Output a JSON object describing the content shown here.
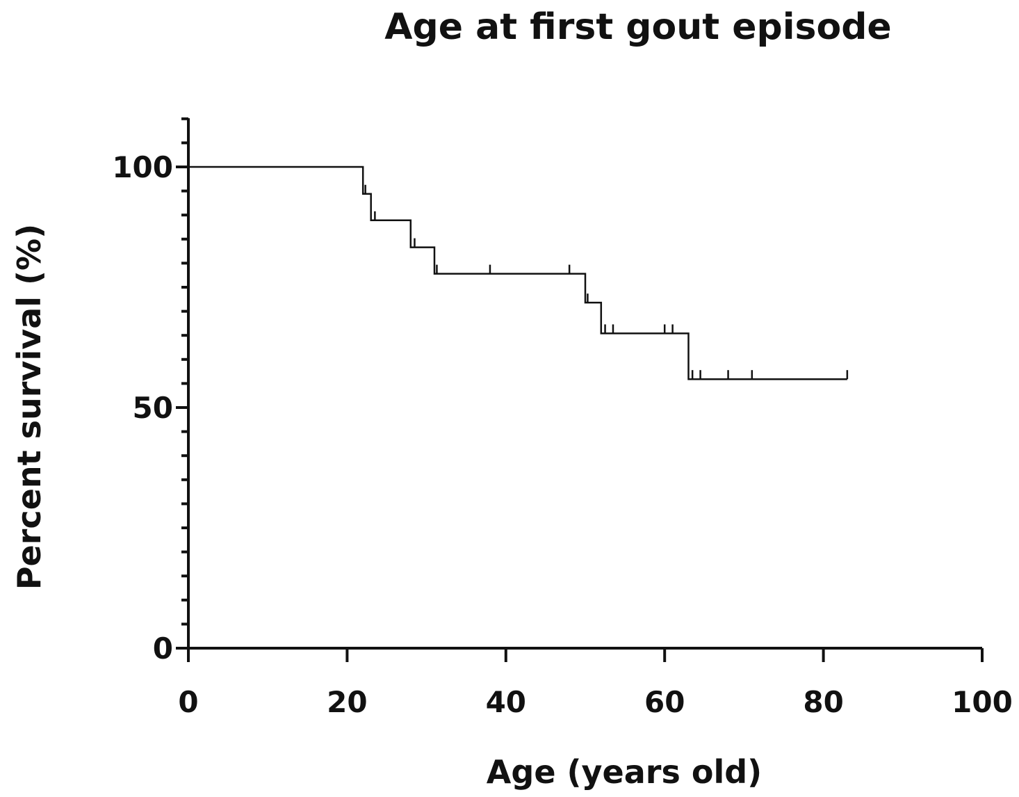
{
  "chart_data": {
    "type": "line",
    "subtype": "kaplan-meier-step",
    "title": "Age at first gout episode",
    "xlabel": "Age (years old)",
    "ylabel": "Percent survival (%)",
    "xlim": [
      0,
      100
    ],
    "ylim": [
      0,
      110
    ],
    "x_ticks": [
      0,
      20,
      40,
      60,
      80,
      100
    ],
    "x_tick_labels": [
      "0",
      "20",
      "40",
      "60",
      "80",
      "100"
    ],
    "y_ticks": [
      0,
      50,
      100
    ],
    "y_tick_labels": [
      "0",
      "50",
      "100"
    ],
    "y_minor_step": 5,
    "grid": false,
    "legend": "none",
    "series": [
      {
        "steps": [
          {
            "x": 0,
            "y": 100
          },
          {
            "x": 22,
            "y": 100
          },
          {
            "x": 22,
            "y": 94.4
          },
          {
            "x": 23,
            "y": 94.4
          },
          {
            "x": 23,
            "y": 88.9
          },
          {
            "x": 28,
            "y": 88.9
          },
          {
            "x": 28,
            "y": 83.3
          },
          {
            "x": 31,
            "y": 83.3
          },
          {
            "x": 31,
            "y": 77.8
          },
          {
            "x": 50,
            "y": 77.8
          },
          {
            "x": 50,
            "y": 71.8
          },
          {
            "x": 52,
            "y": 71.8
          },
          {
            "x": 52,
            "y": 65.4
          },
          {
            "x": 63,
            "y": 65.4
          },
          {
            "x": 63,
            "y": 55.9
          },
          {
            "x": 83,
            "y": 55.9
          }
        ],
        "censored": [
          {
            "x": 22.3,
            "y": 94.4
          },
          {
            "x": 23.5,
            "y": 88.9
          },
          {
            "x": 28.5,
            "y": 83.3
          },
          {
            "x": 31.3,
            "y": 77.8
          },
          {
            "x": 38,
            "y": 77.8
          },
          {
            "x": 48,
            "y": 77.8
          },
          {
            "x": 50.3,
            "y": 71.8
          },
          {
            "x": 52.5,
            "y": 65.4
          },
          {
            "x": 53.5,
            "y": 65.4
          },
          {
            "x": 60,
            "y": 65.4
          },
          {
            "x": 61,
            "y": 65.4
          },
          {
            "x": 63.5,
            "y": 55.9
          },
          {
            "x": 64.5,
            "y": 55.9
          },
          {
            "x": 68,
            "y": 55.9
          },
          {
            "x": 71,
            "y": 55.9
          },
          {
            "x": 83,
            "y": 55.9
          }
        ]
      }
    ]
  }
}
